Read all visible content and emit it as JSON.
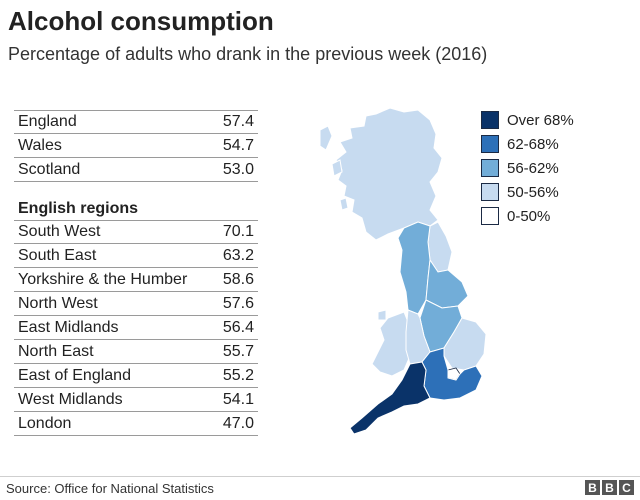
{
  "title": "Alcohol consumption",
  "subtitle": "Percentage of adults who drank in the previous week (2016)",
  "nations": [
    {
      "name": "England",
      "value": "57.4"
    },
    {
      "name": "Wales",
      "value": "54.7"
    },
    {
      "name": "Scotland",
      "value": "53.0"
    }
  ],
  "regions_heading": "English regions",
  "regions": [
    {
      "name": "South West",
      "value": "70.1"
    },
    {
      "name": "South East",
      "value": "63.2"
    },
    {
      "name": "Yorkshire & the Humber",
      "value": "58.6"
    },
    {
      "name": "North West",
      "value": "57.6"
    },
    {
      "name": "East Midlands",
      "value": "56.4"
    },
    {
      "name": "North East",
      "value": "55.7"
    },
    {
      "name": "East of England",
      "value": "55.2"
    },
    {
      "name": "West Midlands",
      "value": "54.1"
    },
    {
      "name": "London",
      "value": "47.0"
    }
  ],
  "legend": [
    {
      "label": "Over 68%",
      "color": "#0a3369"
    },
    {
      "label": "62-68%",
      "color": "#2d70b8"
    },
    {
      "label": "56-62%",
      "color": "#72add8"
    },
    {
      "label": "50-56%",
      "color": "#c7dbf0"
    },
    {
      "label": "0-50%",
      "color": "#ffffff"
    }
  ],
  "source": "Source: Office for National Statistics",
  "logo": [
    "B",
    "B",
    "C"
  ]
}
